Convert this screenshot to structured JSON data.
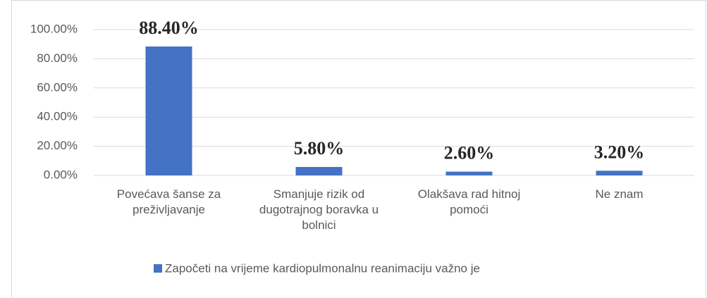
{
  "chart_data": {
    "type": "bar",
    "categories": [
      "Povećava šanse za preživljavanje",
      "Smanjuje rizik od dugotrajnog boravka u bolnici",
      "Olakšava rad hitnoj pomoći",
      "Ne znam"
    ],
    "series": [
      {
        "name": "Započeti na vrijeme kardiopulmonalnu reanimaciju važno je",
        "color": "#4472c4",
        "values": [
          88.4,
          5.8,
          2.6,
          3.2
        ],
        "value_labels": [
          "88.40%",
          "5.80%",
          "2.60%",
          "3.20%"
        ]
      }
    ],
    "ylim": [
      0,
      100
    ],
    "yticks": [
      {
        "value": 0,
        "label": "0.00%"
      },
      {
        "value": 20,
        "label": "20.00%"
      },
      {
        "value": 40,
        "label": "40.00%"
      },
      {
        "value": 60,
        "label": "60.00%"
      },
      {
        "value": 80,
        "label": "80.00%"
      },
      {
        "value": 100,
        "label": "100.00%"
      }
    ],
    "grid": true,
    "legend": "bottom"
  }
}
